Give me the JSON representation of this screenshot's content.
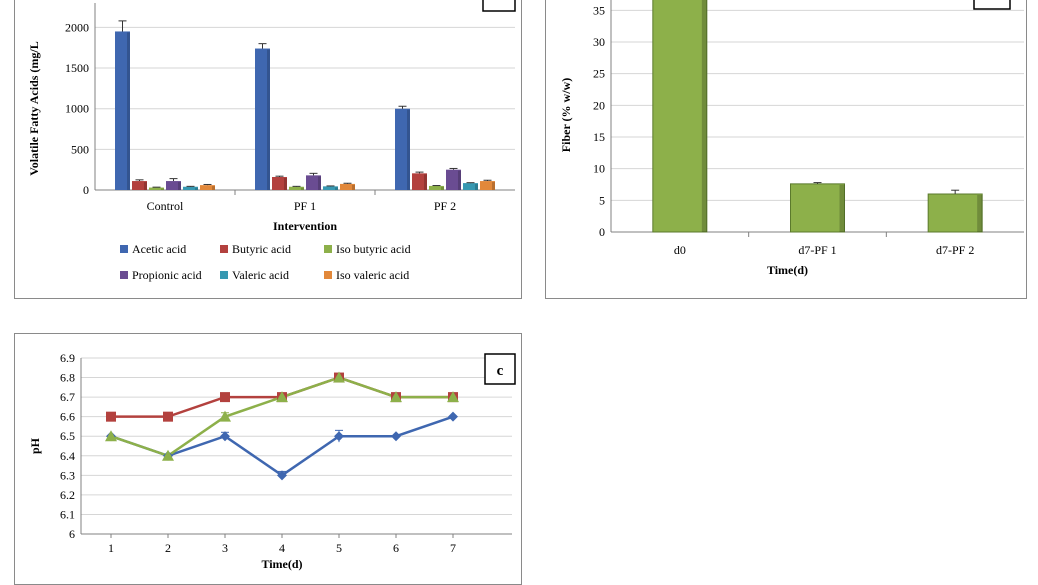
{
  "chart_data": [
    {
      "panel_label": "",
      "type": "bar",
      "xlabel": "Intervention",
      "ylabel": "Volatile Fatty Acids (mg/L",
      "categories": [
        "Control",
        "PF 1",
        "PF 2"
      ],
      "yticks": [
        "0",
        "500",
        "1000",
        "1500",
        "2000"
      ],
      "ylim": [
        0,
        2300
      ],
      "grid": true,
      "legend_position": "bottom",
      "series": [
        {
          "name": "Acetic acid",
          "color": "#3f67b0",
          "values": [
            1950,
            1740,
            1000
          ],
          "errors": [
            130,
            60,
            30
          ]
        },
        {
          "name": "Butyric acid",
          "color": "#b3413e",
          "values": [
            110,
            160,
            205
          ],
          "errors": [
            15,
            10,
            15
          ]
        },
        {
          "name": "Iso butyric acid",
          "color": "#8db04a",
          "values": [
            30,
            40,
            50
          ],
          "errors": [
            5,
            5,
            5
          ]
        },
        {
          "name": "Propionic acid",
          "color": "#6a4c92",
          "values": [
            110,
            180,
            250
          ],
          "errors": [
            30,
            25,
            15
          ]
        },
        {
          "name": "Valeric acid",
          "color": "#3798b1",
          "values": [
            40,
            45,
            85
          ],
          "errors": [
            5,
            5,
            5
          ]
        },
        {
          "name": "Iso valeric acid",
          "color": "#e2883a",
          "values": [
            60,
            75,
            110
          ],
          "errors": [
            8,
            8,
            10
          ]
        }
      ]
    },
    {
      "panel_label": "",
      "type": "bar",
      "xlabel": "Time(d)",
      "ylabel": "Fiber (% w/w)",
      "categories": [
        "d0",
        "d7-PF 1",
        "d7-PF 2"
      ],
      "yticks": [
        "0",
        "5",
        "10",
        "15",
        "20",
        "25",
        "30",
        "35"
      ],
      "ylim": [
        0,
        37
      ],
      "grid": true,
      "series": [
        {
          "name": "",
          "color": "#8db04a",
          "values": [
            37,
            7.6,
            6.0
          ],
          "errors": [
            0,
            0.2,
            0.6
          ]
        }
      ]
    },
    {
      "panel_label": "c",
      "type": "line",
      "xlabel": "Time(d)",
      "ylabel": "pH",
      "x": [
        1,
        2,
        3,
        4,
        5,
        6,
        7
      ],
      "xticks": [
        "1",
        "2",
        "3",
        "4",
        "5",
        "6",
        "7"
      ],
      "yticks": [
        "6",
        "6.1",
        "6.2",
        "6.3",
        "6.4",
        "6.5",
        "6.6",
        "6.7",
        "6.8",
        "6.9"
      ],
      "ylim": [
        6,
        6.9
      ],
      "grid": true,
      "series": [
        {
          "name": "",
          "color": "#3f67b0",
          "marker": "diamond",
          "values": [
            6.5,
            6.4,
            6.5,
            6.3,
            6.5,
            6.5,
            6.6
          ],
          "errors": [
            0,
            0,
            0.02,
            0.02,
            0.03,
            0,
            0
          ]
        },
        {
          "name": "",
          "color": "#b3413e",
          "marker": "square",
          "values": [
            6.6,
            6.6,
            6.7,
            6.7,
            6.8,
            6.7,
            6.7
          ],
          "errors": [
            0,
            0,
            0,
            0,
            0,
            0,
            0
          ]
        },
        {
          "name": "",
          "color": "#8db04a",
          "marker": "triangle",
          "values": [
            6.5,
            6.4,
            6.6,
            6.7,
            6.8,
            6.7,
            6.7
          ],
          "errors": [
            0,
            0,
            0.02,
            0,
            0,
            0,
            0
          ]
        }
      ]
    }
  ]
}
